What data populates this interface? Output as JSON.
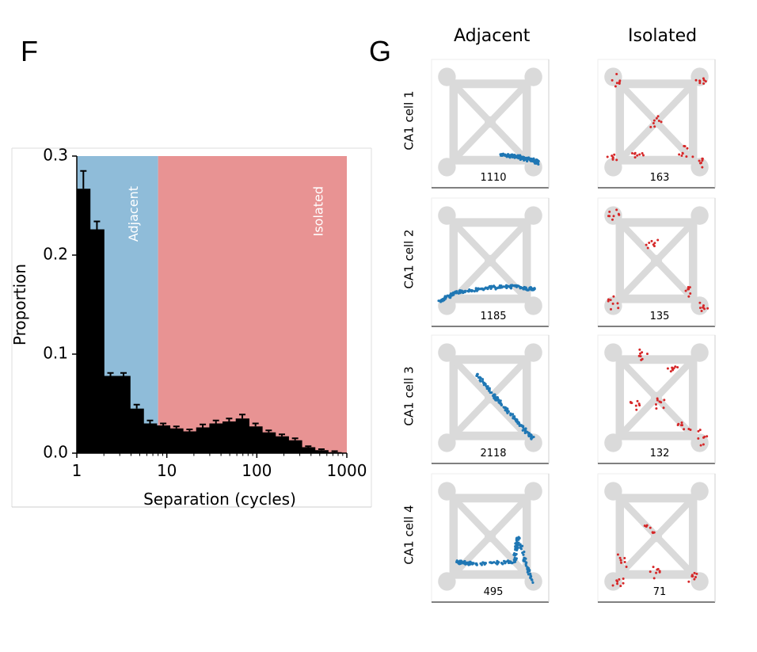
{
  "panels": {
    "f_label": "F",
    "g_label": "G"
  },
  "chart_data": [
    {
      "type": "bar",
      "panel": "F",
      "xlabel": "Separation (cycles)",
      "ylabel": "Proportion",
      "xscale": "log",
      "xlim": [
        1,
        1000
      ],
      "ylim": [
        0,
        0.3
      ],
      "xticks": [
        "1",
        "10",
        "100",
        "1000"
      ],
      "yticks": [
        "0.0",
        "0.1",
        "0.2",
        "0.3"
      ],
      "regions": [
        {
          "label": "Adjacent",
          "x_range": [
            1,
            8
          ],
          "color": "#8fbcd9"
        },
        {
          "label": "Isolated",
          "x_range": [
            8,
            1000
          ],
          "color": "#e89393"
        }
      ],
      "bins": [
        {
          "x0": 1.0,
          "x1": 1.4,
          "value": 0.267,
          "err": 0.018
        },
        {
          "x0": 1.4,
          "x1": 2.0,
          "value": 0.226,
          "err": 0.008
        },
        {
          "x0": 2.0,
          "x1": 2.8,
          "value": 0.078,
          "err": 0.003
        },
        {
          "x0": 2.8,
          "x1": 3.9,
          "value": 0.078,
          "err": 0.003
        },
        {
          "x0": 3.9,
          "x1": 5.5,
          "value": 0.045,
          "err": 0.004
        },
        {
          "x0": 5.5,
          "x1": 7.7,
          "value": 0.03,
          "err": 0.003
        },
        {
          "x0": 7.7,
          "x1": 10.8,
          "value": 0.028,
          "err": 0.002
        },
        {
          "x0": 10.8,
          "x1": 15.1,
          "value": 0.025,
          "err": 0.002
        },
        {
          "x0": 15.1,
          "x1": 21.2,
          "value": 0.022,
          "err": 0.002
        },
        {
          "x0": 21.2,
          "x1": 29.7,
          "value": 0.026,
          "err": 0.003
        },
        {
          "x0": 29.7,
          "x1": 41.6,
          "value": 0.03,
          "err": 0.003
        },
        {
          "x0": 41.6,
          "x1": 58.3,
          "value": 0.032,
          "err": 0.003
        },
        {
          "x0": 58.3,
          "x1": 81.7,
          "value": 0.035,
          "err": 0.004
        },
        {
          "x0": 81.7,
          "x1": 114.5,
          "value": 0.027,
          "err": 0.003
        },
        {
          "x0": 114.5,
          "x1": 160.4,
          "value": 0.021,
          "err": 0.002
        },
        {
          "x0": 160.4,
          "x1": 224.8,
          "value": 0.017,
          "err": 0.002
        },
        {
          "x0": 224.8,
          "x1": 315.0,
          "value": 0.013,
          "err": 0.002
        },
        {
          "x0": 315.0,
          "x1": 441.4,
          "value": 0.006,
          "err": 0.001
        },
        {
          "x0": 441.4,
          "x1": 618.5,
          "value": 0.003,
          "err": 0.001
        },
        {
          "x0": 618.5,
          "x1": 866.6,
          "value": 0.001,
          "err": 0.001
        }
      ]
    },
    {
      "type": "scatter",
      "panel": "G",
      "columns": [
        {
          "label": "Adjacent",
          "color": "#1f77b4"
        },
        {
          "label": "Isolated",
          "color": "#d62728"
        }
      ],
      "rows": [
        {
          "label": "CA1 cell 1",
          "counts": [
            "1110",
            "163"
          ]
        },
        {
          "label": "CA1 cell 2",
          "counts": [
            "1185",
            "135"
          ]
        },
        {
          "label": "CA1 cell 3",
          "counts": [
            "2118",
            "132"
          ]
        },
        {
          "label": "CA1 cell 4",
          "counts": [
            "495",
            "71"
          ]
        }
      ]
    }
  ]
}
